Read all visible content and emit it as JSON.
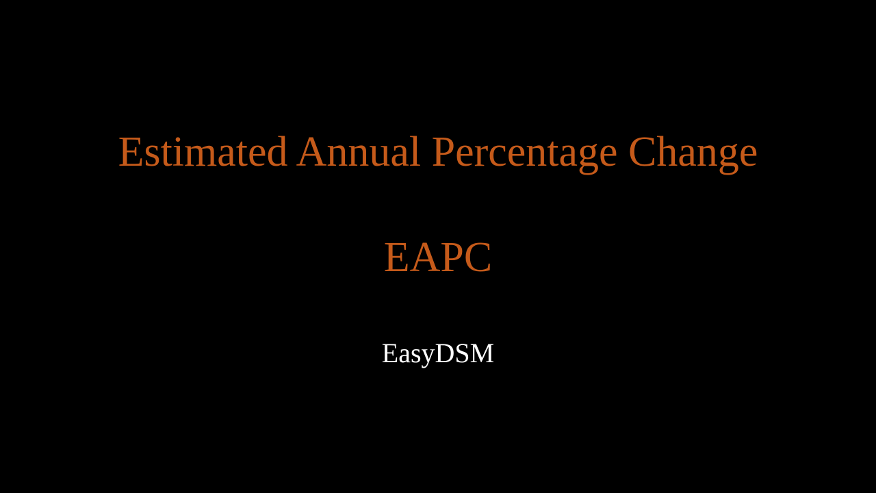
{
  "slide": {
    "title": "Estimated Annual Percentage Change",
    "acronym": "EAPC",
    "brand": "EasyDSM"
  },
  "colors": {
    "background": "#000000",
    "accent": "#c55a1a",
    "brand_text": "#ffffff"
  }
}
